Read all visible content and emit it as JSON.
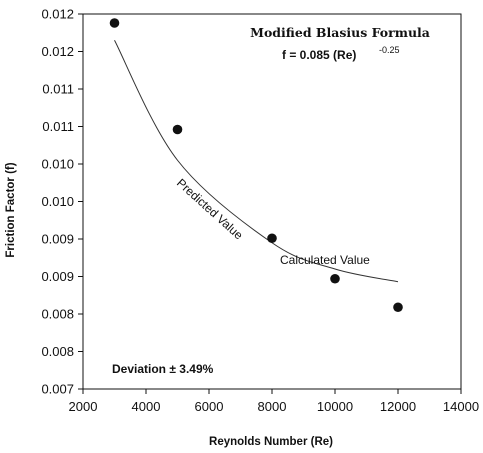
{
  "chart_data": {
    "type": "scatter",
    "title": "Modified Blasius Formula",
    "formula": {
      "base": "f = 0.085 (Re)",
      "exponent": "-0.25"
    },
    "xlabel": "Reynolds Number (Re)",
    "ylabel": "Friction Factor (f)",
    "xlim": [
      2000,
      14000
    ],
    "ylim": [
      0.007,
      0.012
    ],
    "xticks": [
      2000,
      4000,
      6000,
      8000,
      10000,
      12000,
      14000
    ],
    "x_tick_labels": [
      "2000",
      "4000",
      "6000",
      "8000",
      "10000",
      "12000",
      "14000"
    ],
    "yticks": [
      0.007,
      0.0075,
      0.008,
      0.0085,
      0.009,
      0.0095,
      0.01,
      0.0105,
      0.011,
      0.0115,
      0.012
    ],
    "y_tick_labels": [
      "0.007",
      "0.008",
      "0.008",
      "0.009",
      "0.009",
      "0.010",
      "0.010",
      "0.011",
      "0.011",
      "0.012",
      "0.012"
    ],
    "series": [
      {
        "name": "Calculated Value",
        "kind": "points",
        "x": [
          3000,
          5000,
          8000,
          10000,
          12000
        ],
        "y": [
          0.01188,
          0.01046,
          0.00901,
          0.00847,
          0.00809
        ]
      },
      {
        "name": "Predicted Value",
        "kind": "curve",
        "x": [
          3000,
          5000,
          8000,
          10000,
          12000
        ],
        "y": [
          0.01165,
          0.01005,
          0.00895,
          0.0086,
          0.00843
        ]
      }
    ],
    "annotations": {
      "calculated_label": "Calculated Value",
      "predicted_label": "Predicted Value",
      "deviation": "Deviation ± 3.49%"
    },
    "grid": false,
    "colors": {
      "marks": "#111111",
      "curve": "#333333",
      "background": "#ffffff"
    }
  }
}
